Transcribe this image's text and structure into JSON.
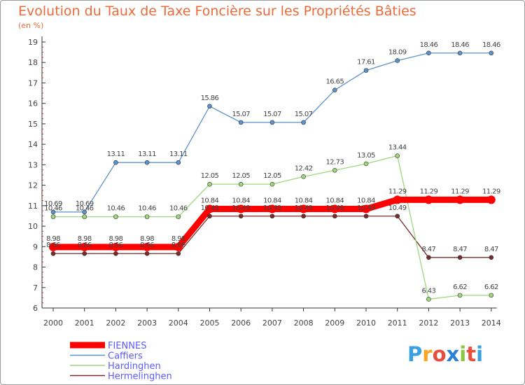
{
  "chart_data": {
    "type": "line",
    "title": "Evolution du Taux de Taxe Foncière sur les Propriétés Bâties",
    "subtitle": "(en %)",
    "xlabel": "",
    "ylabel": "",
    "ylim": [
      6,
      19
    ],
    "y_ticks": [
      "6",
      "7",
      "8",
      "9",
      "10",
      "11",
      "12",
      "13",
      "14",
      "15",
      "16",
      "17",
      "18",
      "19"
    ],
    "categories": [
      "2000",
      "2001",
      "2002",
      "2003",
      "2004",
      "2005",
      "2006",
      "2007",
      "2008",
      "2009",
      "2010",
      "2011",
      "2012",
      "2013",
      "2014"
    ],
    "grid": false,
    "legend_position": "bottom-left",
    "series": [
      {
        "name": "FIENNES",
        "color": "#ff0000",
        "values": [
          8.98,
          8.98,
          8.98,
          8.98,
          8.98,
          10.84,
          10.84,
          10.84,
          10.84,
          10.84,
          10.84,
          11.29,
          11.29,
          11.29,
          11.29
        ],
        "labels": [
          "8.98",
          "8.98",
          "8.98",
          "8.98",
          "8.98",
          "10.84",
          "10.84",
          "10.84",
          "10.84",
          "10.84",
          "10.84",
          "11.29",
          "11.29",
          "11.29",
          "11.29"
        ]
      },
      {
        "name": "Caffiers",
        "color": "#5b93cc",
        "values": [
          10.69,
          10.69,
          13.11,
          13.11,
          13.11,
          15.86,
          15.07,
          15.07,
          15.07,
          16.65,
          17.61,
          18.09,
          18.46,
          18.46,
          18.46
        ],
        "labels": [
          "10.69",
          "10.69",
          "13.11",
          "13.11",
          "13.11",
          "15.86",
          "15.07",
          "15.07",
          "15.07",
          "16.65",
          "17.61",
          "18.09",
          "18.46",
          "18.46",
          "18.46"
        ]
      },
      {
        "name": "Hardinghen",
        "color": "#9ed77c",
        "values": [
          10.46,
          10.46,
          10.46,
          10.46,
          10.46,
          12.05,
          12.05,
          12.05,
          12.42,
          12.73,
          13.05,
          13.44,
          6.43,
          6.62,
          6.62
        ],
        "labels": [
          "10.46",
          "10.46",
          "10.46",
          "10.46",
          "10.46",
          "12.05",
          "12.05",
          "12.05",
          "12.42",
          "12.73",
          "13.05",
          "13.44",
          "6.43",
          "6.62",
          "6.62"
        ]
      },
      {
        "name": "Hermelinghen",
        "color": "#7a2a2a",
        "values": [
          8.66,
          8.66,
          8.66,
          8.66,
          8.66,
          10.49,
          10.49,
          10.49,
          10.49,
          10.49,
          10.49,
          10.49,
          8.47,
          8.47,
          8.47
        ],
        "labels": [
          "8.66",
          "8.66",
          "8.66",
          "8.66",
          "8.66",
          "10.49",
          "10.49",
          "10.49",
          "10.49",
          "10.49",
          "10.49",
          "10.49",
          "8.47",
          "8.47",
          "8.47"
        ]
      }
    ]
  },
  "branding": {
    "logo_text": "Proxiti",
    "logo_colors": [
      "#3aa0e0",
      "#f6a623",
      "#e84e3c",
      "#2b7fd4",
      "#8cc63f",
      "#e84e3c",
      "#3aa0e0"
    ]
  }
}
